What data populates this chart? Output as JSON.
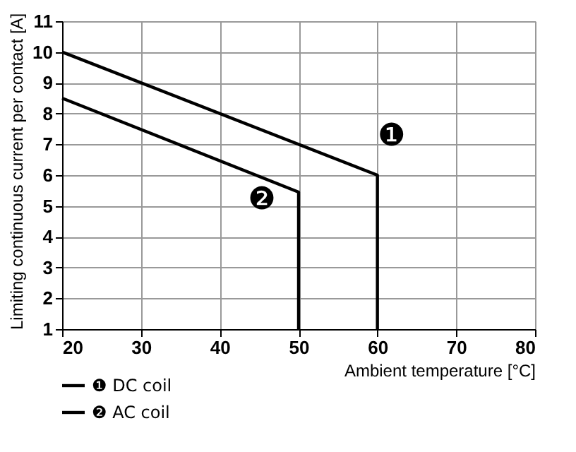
{
  "chart_data": {
    "type": "line",
    "xlabel": "Ambient temperature [°C]",
    "ylabel": "Limiting continuous current per contact [A]",
    "series": [
      {
        "name": "❶ DC coil",
        "color": "#000000",
        "x": [
          20,
          60,
          60
        ],
        "values": [
          10,
          6,
          1
        ]
      },
      {
        "name": "❷ AC coil",
        "color": "#000000",
        "x": [
          20,
          50,
          50
        ],
        "values": [
          8.5,
          5.45,
          1
        ]
      }
    ],
    "annotations": [
      "❶",
      "❷"
    ],
    "xlim": [
      20,
      80
    ],
    "xticks": [
      20,
      30,
      40,
      50,
      60,
      70,
      80
    ],
    "ylim": [
      1,
      11
    ],
    "yticks": [
      1,
      2,
      3,
      4,
      5,
      6,
      7,
      8,
      9,
      10,
      11
    ],
    "grid": true,
    "legend": "bottom left",
    "marker": "none",
    "line_style": "solid"
  }
}
